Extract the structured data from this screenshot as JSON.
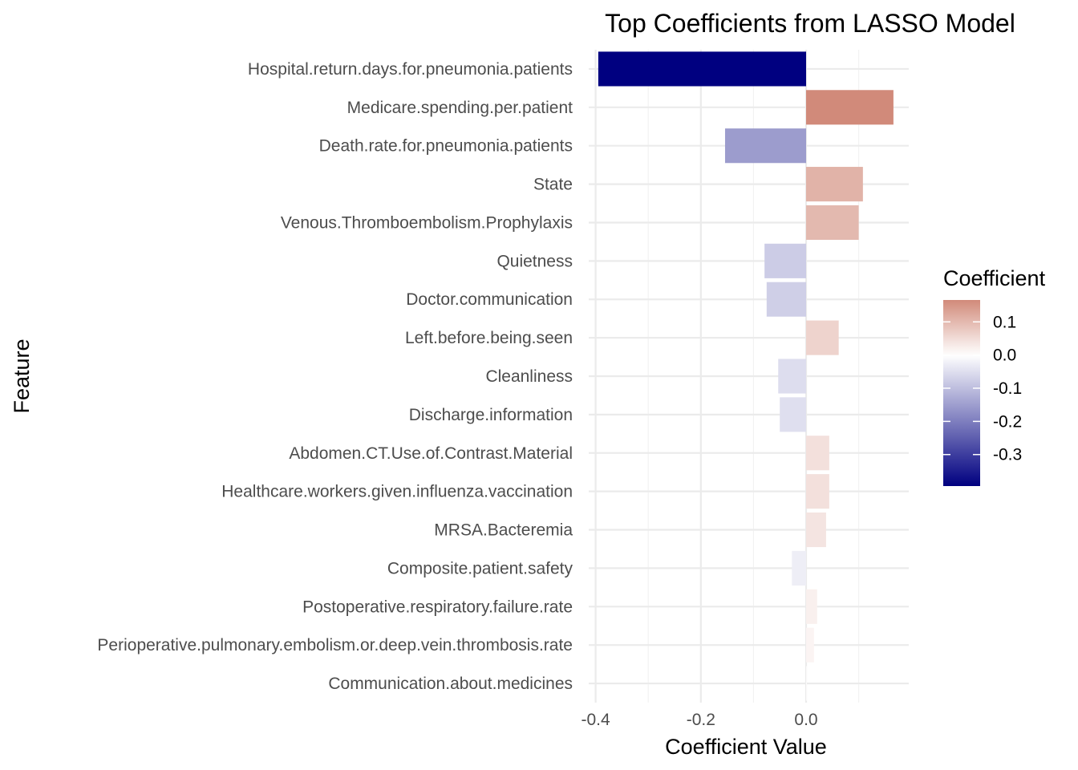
{
  "chart_data": {
    "type": "bar",
    "orientation": "horizontal",
    "title": "Top Coefficients from LASSO Model",
    "xlabel": "Coefficient Value",
    "ylabel": "Feature",
    "xlim": [
      -0.4,
      0.17
    ],
    "x_ticks": [
      -0.4,
      -0.2,
      0.0
    ],
    "x_tick_labels": [
      "-0.4",
      "-0.2",
      "0.0"
    ],
    "grid": true,
    "categories": [
      "Hospital.return.days.for.pneumonia.patients",
      "Medicare.spending.per.patient",
      "Death.rate.for.pneumonia.patients",
      "State",
      "Venous.Thromboembolism.Prophylaxis",
      "Quietness",
      "Doctor.communication",
      "Left.before.being.seen",
      "Cleanliness",
      "Discharge.information",
      "Abdomen.CT.Use.of.Contrast.Material",
      "Healthcare.workers.given.influenza.vaccination",
      "MRSA.Bacteremia",
      "Composite.patient.safety",
      "Postoperative.respiratory.failure.rate",
      "Perioperative.pulmonary.embolism.or.deep.vein.thrombosis.rate",
      "Communication.about.medicines"
    ],
    "values": [
      -0.395,
      0.166,
      -0.154,
      0.108,
      0.1,
      -0.079,
      -0.075,
      0.062,
      -0.053,
      -0.05,
      0.044,
      0.044,
      0.038,
      -0.027,
      0.021,
      0.015,
      0.001
    ],
    "legend": {
      "title": "Coefficient",
      "position": "right",
      "labels": [
        "0.1",
        "0.0",
        "-0.1",
        "-0.2",
        "-0.3"
      ],
      "values": [
        0.1,
        0.0,
        -0.1,
        -0.2,
        -0.3
      ],
      "range": [
        -0.395,
        0.166
      ]
    },
    "colors": {
      "low": "#000080",
      "mid": "#ffffff",
      "high": "#d18a7a"
    }
  }
}
